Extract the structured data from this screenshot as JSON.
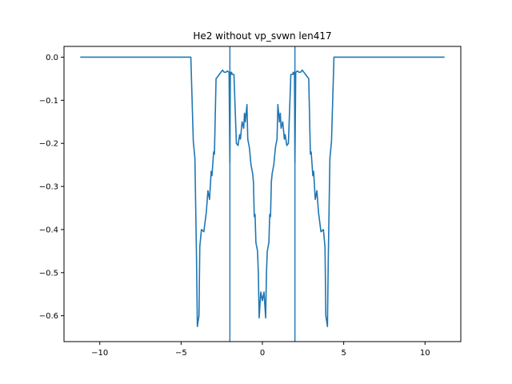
{
  "chart_data": {
    "type": "line",
    "title": "He2 without vp_svwn len417",
    "xlabel": "",
    "ylabel": "",
    "xlim": [
      -12.2,
      12.2
    ],
    "ylim": [
      -0.66,
      0.025
    ],
    "grid": false,
    "colors": {
      "series": "#1f77b4",
      "vlines": "#1f77b4"
    },
    "xticks": [
      -10,
      -5,
      0,
      5,
      10
    ],
    "xtick_labels": [
      "−10",
      "−5",
      "0",
      "5",
      "10"
    ],
    "yticks": [
      0.0,
      -0.1,
      -0.2,
      -0.3,
      -0.4,
      -0.5,
      -0.6
    ],
    "ytick_labels": [
      "0.0",
      "−0.1",
      "−0.2",
      "−0.3",
      "−0.4",
      "−0.5",
      "−0.6"
    ],
    "vlines": [
      -2.0,
      2.0
    ],
    "series": [
      {
        "x": [
          -11.2,
          -4.4,
          -4.25,
          -4.15,
          -4.05,
          -4.0,
          -3.9,
          -3.85,
          -3.75,
          -3.6,
          -3.45,
          -3.35,
          -3.25,
          -3.15,
          -3.1,
          -3.0,
          -2.95,
          -2.85,
          -2.75,
          -2.65,
          -2.55,
          -2.45,
          -2.35,
          -2.25,
          -2.15,
          -2.05,
          -2.0,
          -1.97,
          -1.93,
          -1.9,
          -1.85,
          -1.75,
          -1.6,
          -1.5,
          -1.4,
          -1.35,
          -1.25,
          -1.15,
          -1.1,
          -1.05,
          -0.95,
          -0.9,
          -0.8,
          -0.7,
          -0.6,
          -0.55,
          -0.5,
          -0.45,
          -0.4,
          -0.3,
          -0.25,
          -0.2,
          -0.1,
          0.0,
          0.1,
          0.2,
          0.25,
          0.3,
          0.4,
          0.45,
          0.5,
          0.55,
          0.6,
          0.7,
          0.8,
          0.9,
          0.95,
          1.05,
          1.1,
          1.15,
          1.25,
          1.35,
          1.4,
          1.5,
          1.6,
          1.75,
          1.85,
          1.9,
          1.93,
          1.97,
          2.0,
          2.05,
          2.15,
          2.25,
          2.35,
          2.45,
          2.55,
          2.65,
          2.75,
          2.85,
          2.95,
          3.0,
          3.1,
          3.15,
          3.25,
          3.35,
          3.45,
          3.6,
          3.75,
          3.85,
          3.9,
          4.0,
          4.05,
          4.15,
          4.25,
          4.4,
          11.2
        ],
        "y": [
          0.0,
          0.0,
          -0.195,
          -0.235,
          -0.47,
          -0.625,
          -0.6,
          -0.44,
          -0.4,
          -0.405,
          -0.36,
          -0.31,
          -0.33,
          -0.265,
          -0.275,
          -0.22,
          -0.225,
          -0.05,
          -0.045,
          -0.04,
          -0.035,
          -0.03,
          -0.035,
          -0.035,
          -0.032,
          -0.035,
          -0.245,
          -0.035,
          -0.04,
          -0.035,
          -0.04,
          -0.04,
          -0.2,
          -0.205,
          -0.18,
          -0.19,
          -0.15,
          -0.165,
          -0.13,
          -0.15,
          -0.11,
          -0.19,
          -0.21,
          -0.25,
          -0.27,
          -0.29,
          -0.37,
          -0.365,
          -0.43,
          -0.45,
          -0.5,
          -0.605,
          -0.545,
          -0.565,
          -0.545,
          -0.605,
          -0.5,
          -0.45,
          -0.43,
          -0.365,
          -0.37,
          -0.29,
          -0.27,
          -0.25,
          -0.21,
          -0.19,
          -0.11,
          -0.15,
          -0.13,
          -0.165,
          -0.15,
          -0.19,
          -0.18,
          -0.205,
          -0.2,
          -0.04,
          -0.04,
          -0.035,
          -0.04,
          -0.035,
          -0.245,
          -0.035,
          -0.032,
          -0.035,
          -0.035,
          -0.03,
          -0.035,
          -0.04,
          -0.045,
          -0.05,
          -0.225,
          -0.22,
          -0.275,
          -0.265,
          -0.33,
          -0.31,
          -0.36,
          -0.405,
          -0.4,
          -0.44,
          -0.6,
          -0.625,
          -0.47,
          -0.235,
          -0.195,
          0.0,
          0.0
        ]
      }
    ]
  }
}
